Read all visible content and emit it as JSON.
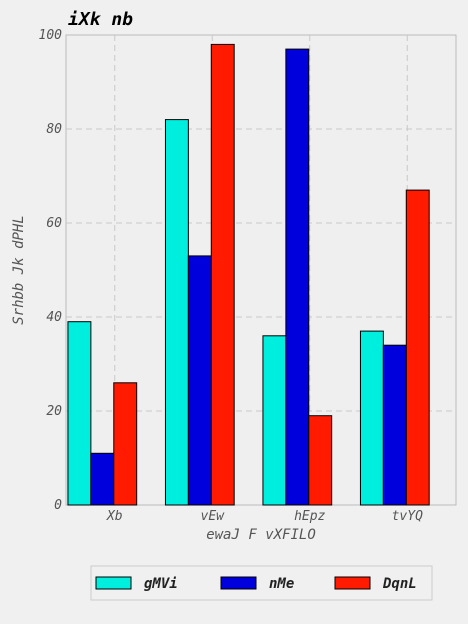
{
  "chart_data": {
    "type": "bar",
    "title": "iXk nb",
    "xlabel": "ewaJ F vXFILO",
    "ylabel": "Srhbb Jk dPHL",
    "categories": [
      "Xb",
      "vEw",
      "hEpz",
      "tvYQ"
    ],
    "series": [
      {
        "name": "gMVi",
        "color": "#00eedd",
        "values": [
          39,
          82,
          36,
          37
        ]
      },
      {
        "name": "nMe",
        "color": "#0000dd",
        "values": [
          11,
          53,
          97,
          34
        ]
      },
      {
        "name": "DqnL",
        "color": "#ff1a00",
        "values": [
          26,
          98,
          19,
          67
        ]
      }
    ],
    "ylim": [
      0,
      100
    ],
    "yticks": [
      0,
      20,
      40,
      60,
      80,
      100
    ],
    "grid": true,
    "legend_position": "bottom-center"
  }
}
